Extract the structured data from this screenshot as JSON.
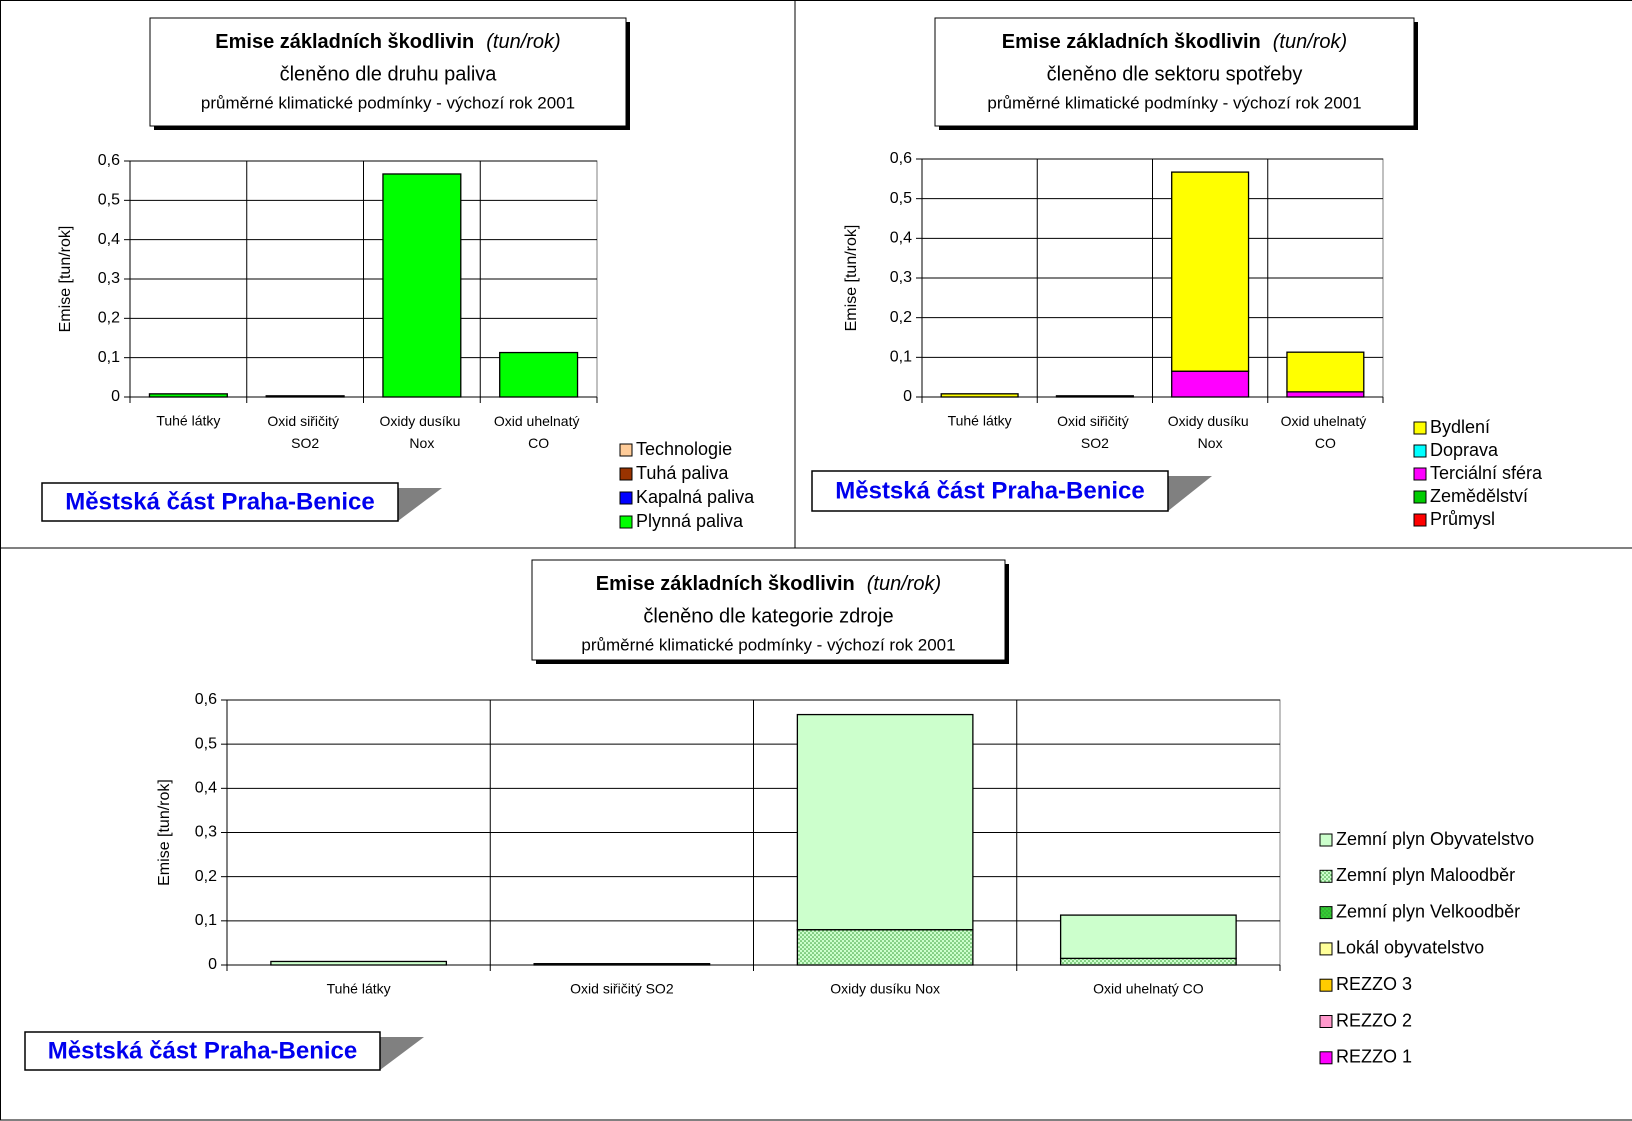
{
  "chart_data": [
    {
      "type": "bar",
      "stacked": true,
      "title": "Emise základních škodlivin",
      "title_unit": "(tun/rok)",
      "subtitle": "členěno dle druhu paliva",
      "subtitle2": "průměrné klimatické podmínky - výchozí rok 2001",
      "ylabel": "Emise [tun/rok]",
      "annotation": "Městská část Praha-Benice",
      "categories": [
        "Tuhé látky",
        "Oxid siřičitý SO2",
        "Oxidy dusíku Nox",
        "Oxid uhelnatý CO"
      ],
      "series": [
        {
          "name": "Technologie",
          "color": "#ffcc99",
          "values": [
            0,
            0,
            0,
            0
          ]
        },
        {
          "name": "Tuhá paliva",
          "color": "#993300",
          "values": [
            0,
            0,
            0,
            0
          ]
        },
        {
          "name": "Kapalná paliva",
          "color": "#0000ff",
          "values": [
            0,
            0,
            0,
            0
          ]
        },
        {
          "name": "Plynná paliva",
          "color": "#00ff00",
          "values": [
            0.008,
            0.003,
            0.567,
            0.113
          ]
        }
      ],
      "ylim": [
        0,
        0.6
      ],
      "yticks": [
        0,
        {
          "value": 0.1,
          "label": "0,1"
        },
        {
          "value": 0.2,
          "label": "0,2"
        },
        {
          "value": 0.3,
          "label": "0,3"
        },
        {
          "value": 0.4,
          "label": "0,4"
        },
        {
          "value": 0.5,
          "label": "0,5"
        },
        {
          "value": 0.6,
          "label": "0,6"
        }
      ],
      "grid": true,
      "legend": "right"
    },
    {
      "type": "bar",
      "stacked": true,
      "title": "Emise základních škodlivin",
      "title_unit": "(tun/rok)",
      "subtitle": "členěno dle sektoru spotřeby",
      "subtitle2": "průměrné klimatické podmínky - výchozí rok 2001",
      "ylabel": "Emise [tun/rok]",
      "annotation": "Městská část Praha-Benice",
      "categories": [
        "Tuhé látky",
        "Oxid siřičitý SO2",
        "Oxidy dusíku Nox",
        "Oxid uhelnatý CO"
      ],
      "series": [
        {
          "name": "Bydlení",
          "color": "#ffff00",
          "values": [
            0.008,
            0.003,
            0.502,
            0.1
          ]
        },
        {
          "name": "Doprava",
          "color": "#00ffff",
          "values": [
            0,
            0,
            0,
            0
          ]
        },
        {
          "name": "Terciální sféra",
          "color": "#ff00ff",
          "values": [
            0,
            0,
            0.065,
            0.013
          ]
        },
        {
          "name": "Zemědělství",
          "color": "#00cc00",
          "values": [
            0,
            0,
            0,
            0
          ]
        },
        {
          "name": "Průmysl",
          "color": "#ff0000",
          "values": [
            0,
            0,
            0,
            0
          ]
        }
      ],
      "ylim": [
        0,
        0.6
      ],
      "yticks": [
        0,
        {
          "value": 0.1,
          "label": "0,1"
        },
        {
          "value": 0.2,
          "label": "0,2"
        },
        {
          "value": 0.3,
          "label": "0,3"
        },
        {
          "value": 0.4,
          "label": "0,4"
        },
        {
          "value": 0.5,
          "label": "0,5"
        },
        {
          "value": 0.6,
          "label": "0,6"
        }
      ],
      "grid": true,
      "legend": "right"
    },
    {
      "type": "bar",
      "stacked": true,
      "title": "Emise základních škodlivin",
      "title_unit": "(tun/rok)",
      "subtitle": "členěno dle kategorie zdroje",
      "subtitle2": "průměrné klimatické podmínky - výchozí rok 2001",
      "ylabel": "Emise [tun/rok]",
      "annotation": "Městská část Praha-Benice",
      "categories": [
        "Tuhé látky",
        "Oxid siřičitý SO2",
        "Oxidy dusíku Nox",
        "Oxid uhelnatý CO"
      ],
      "series": [
        {
          "name": "Zemní plyn Obyvatelstvo",
          "color": "#ccffcc",
          "values": [
            0.008,
            0.003,
            0.487,
            0.098
          ]
        },
        {
          "name": "Zemní plyn Maloodběr",
          "color": "#ccffcc",
          "pattern": "dots",
          "values": [
            0,
            0,
            0.08,
            0.015
          ]
        },
        {
          "name": "Zemní plyn Velkoodběr",
          "color": "#33cc33",
          "pattern": "dots",
          "values": [
            0,
            0,
            0,
            0
          ]
        },
        {
          "name": "Lokál obyvatelstvo",
          "color": "#ffff99",
          "values": [
            0,
            0,
            0,
            0
          ]
        },
        {
          "name": "REZZO 3",
          "color": "#ffcc00",
          "values": [
            0,
            0,
            0,
            0
          ]
        },
        {
          "name": "REZZO 2",
          "color": "#ff99cc",
          "values": [
            0,
            0,
            0,
            0
          ]
        },
        {
          "name": "REZZO 1",
          "color": "#ff00ff",
          "values": [
            0,
            0,
            0,
            0
          ]
        }
      ],
      "ylim": [
        0,
        0.6
      ],
      "yticks": [
        0,
        {
          "value": 0.1,
          "label": "0,1"
        },
        {
          "value": 0.2,
          "label": "0,2"
        },
        {
          "value": 0.3,
          "label": "0,3"
        },
        {
          "value": 0.4,
          "label": "0,4"
        },
        {
          "value": 0.5,
          "label": "0,5"
        },
        {
          "value": 0.6,
          "label": "0,6"
        }
      ],
      "grid": true,
      "legend": "right"
    }
  ]
}
